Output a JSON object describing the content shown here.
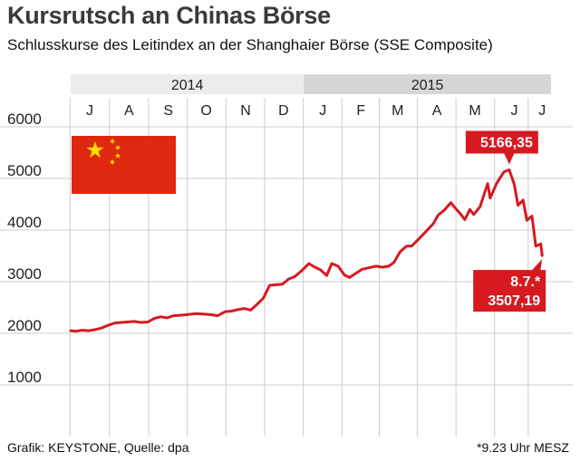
{
  "header": {
    "title": "Kursrutsch an Chinas Börse",
    "subtitle": "Schlusskurse des Leitindex an der Shanghaier Börse (SSE Composite)"
  },
  "footer": {
    "credit": "Grafik: KEYSTONE, Quelle: dpa",
    "note": "*9.23 Uhr MESZ"
  },
  "colors": {
    "line": "#d71920",
    "grid": "#cccccc",
    "year_band_2014": "#ececec",
    "year_band_2015": "#d6d6d6"
  },
  "icon": "china-flag-icon",
  "chart_data": {
    "type": "line",
    "years": [
      {
        "label": "2014",
        "start": "2014-07-01",
        "end": "2015-01-01"
      },
      {
        "label": "2015",
        "start": "2015-01-01",
        "end": "2015-07-15"
      }
    ],
    "months": [
      {
        "label": "J",
        "date": "2014-07-16"
      },
      {
        "label": "A",
        "date": "2014-08-16"
      },
      {
        "label": "S",
        "date": "2014-09-16"
      },
      {
        "label": "O",
        "date": "2014-10-16"
      },
      {
        "label": "N",
        "date": "2014-11-16"
      },
      {
        "label": "D",
        "date": "2014-12-16"
      },
      {
        "label": "J",
        "date": "2015-01-16"
      },
      {
        "label": "F",
        "date": "2015-02-15"
      },
      {
        "label": "M",
        "date": "2015-03-16"
      },
      {
        "label": "A",
        "date": "2015-04-16"
      },
      {
        "label": "M",
        "date": "2015-05-16"
      },
      {
        "label": "J",
        "date": "2015-06-16"
      },
      {
        "label": "J",
        "date": "2015-07-08"
      }
    ],
    "xlim": [
      "2014-07-01",
      "2015-07-15"
    ],
    "ylim": [
      0,
      6000
    ],
    "yticks": [
      1000,
      2000,
      3000,
      4000,
      5000,
      6000
    ],
    "grid": true,
    "series": [
      {
        "points": [
          [
            "2014-07-01",
            2050
          ],
          [
            "2014-07-05",
            2040
          ],
          [
            "2014-07-10",
            2060
          ],
          [
            "2014-07-15",
            2050
          ],
          [
            "2014-07-20",
            2070
          ],
          [
            "2014-07-25",
            2100
          ],
          [
            "2014-07-31",
            2160
          ],
          [
            "2014-08-05",
            2200
          ],
          [
            "2014-08-10",
            2210
          ],
          [
            "2014-08-15",
            2220
          ],
          [
            "2014-08-20",
            2230
          ],
          [
            "2014-08-25",
            2210
          ],
          [
            "2014-08-31",
            2220
          ],
          [
            "2014-09-05",
            2290
          ],
          [
            "2014-09-10",
            2320
          ],
          [
            "2014-09-15",
            2300
          ],
          [
            "2014-09-20",
            2340
          ],
          [
            "2014-09-25",
            2350
          ],
          [
            "2014-09-30",
            2360
          ],
          [
            "2014-10-08",
            2380
          ],
          [
            "2014-10-15",
            2370
          ],
          [
            "2014-10-20",
            2360
          ],
          [
            "2014-10-25",
            2340
          ],
          [
            "2014-10-31",
            2420
          ],
          [
            "2014-11-05",
            2430
          ],
          [
            "2014-11-10",
            2460
          ],
          [
            "2014-11-15",
            2480
          ],
          [
            "2014-11-20",
            2450
          ],
          [
            "2014-11-25",
            2560
          ],
          [
            "2014-11-30",
            2680
          ],
          [
            "2014-12-05",
            2930
          ],
          [
            "2014-12-10",
            2940
          ],
          [
            "2014-12-15",
            2950
          ],
          [
            "2014-12-20",
            3050
          ],
          [
            "2014-12-25",
            3100
          ],
          [
            "2014-12-31",
            3230
          ],
          [
            "2015-01-05",
            3350
          ],
          [
            "2015-01-09",
            3290
          ],
          [
            "2015-01-14",
            3230
          ],
          [
            "2015-01-19",
            3120
          ],
          [
            "2015-01-23",
            3350
          ],
          [
            "2015-01-28",
            3300
          ],
          [
            "2015-02-02",
            3130
          ],
          [
            "2015-02-06",
            3080
          ],
          [
            "2015-02-11",
            3160
          ],
          [
            "2015-02-16",
            3240
          ],
          [
            "2015-02-27",
            3300
          ],
          [
            "2015-03-04",
            3280
          ],
          [
            "2015-03-09",
            3300
          ],
          [
            "2015-03-13",
            3370
          ],
          [
            "2015-03-18",
            3580
          ],
          [
            "2015-03-23",
            3690
          ],
          [
            "2015-03-27",
            3690
          ],
          [
            "2015-04-01",
            3810
          ],
          [
            "2015-04-08",
            3990
          ],
          [
            "2015-04-13",
            4120
          ],
          [
            "2015-04-17",
            4290
          ],
          [
            "2015-04-22",
            4390
          ],
          [
            "2015-04-27",
            4530
          ],
          [
            "2015-04-30",
            4440
          ],
          [
            "2015-05-05",
            4300
          ],
          [
            "2015-05-08",
            4200
          ],
          [
            "2015-05-12",
            4400
          ],
          [
            "2015-05-15",
            4300
          ],
          [
            "2015-05-20",
            4450
          ],
          [
            "2015-05-26",
            4900
          ],
          [
            "2015-05-28",
            4620
          ],
          [
            "2015-06-02",
            4900
          ],
          [
            "2015-06-05",
            5020
          ],
          [
            "2015-06-08",
            5130
          ],
          [
            "2015-06-12",
            5166
          ],
          [
            "2015-06-16",
            4890
          ],
          [
            "2015-06-19",
            4480
          ],
          [
            "2015-06-23",
            4580
          ],
          [
            "2015-06-26",
            4190
          ],
          [
            "2015-06-30",
            4270
          ],
          [
            "2015-07-03",
            3690
          ],
          [
            "2015-07-07",
            3730
          ],
          [
            "2015-07-08",
            3507
          ]
        ]
      }
    ],
    "annotations": [
      {
        "date": "2015-06-12",
        "value": 5166.35,
        "lines": [
          "5166,35"
        ],
        "position": "above"
      },
      {
        "date": "2015-07-08",
        "value": 3507.19,
        "lines": [
          "8.7.*",
          "3507,19"
        ],
        "position": "below"
      }
    ]
  }
}
